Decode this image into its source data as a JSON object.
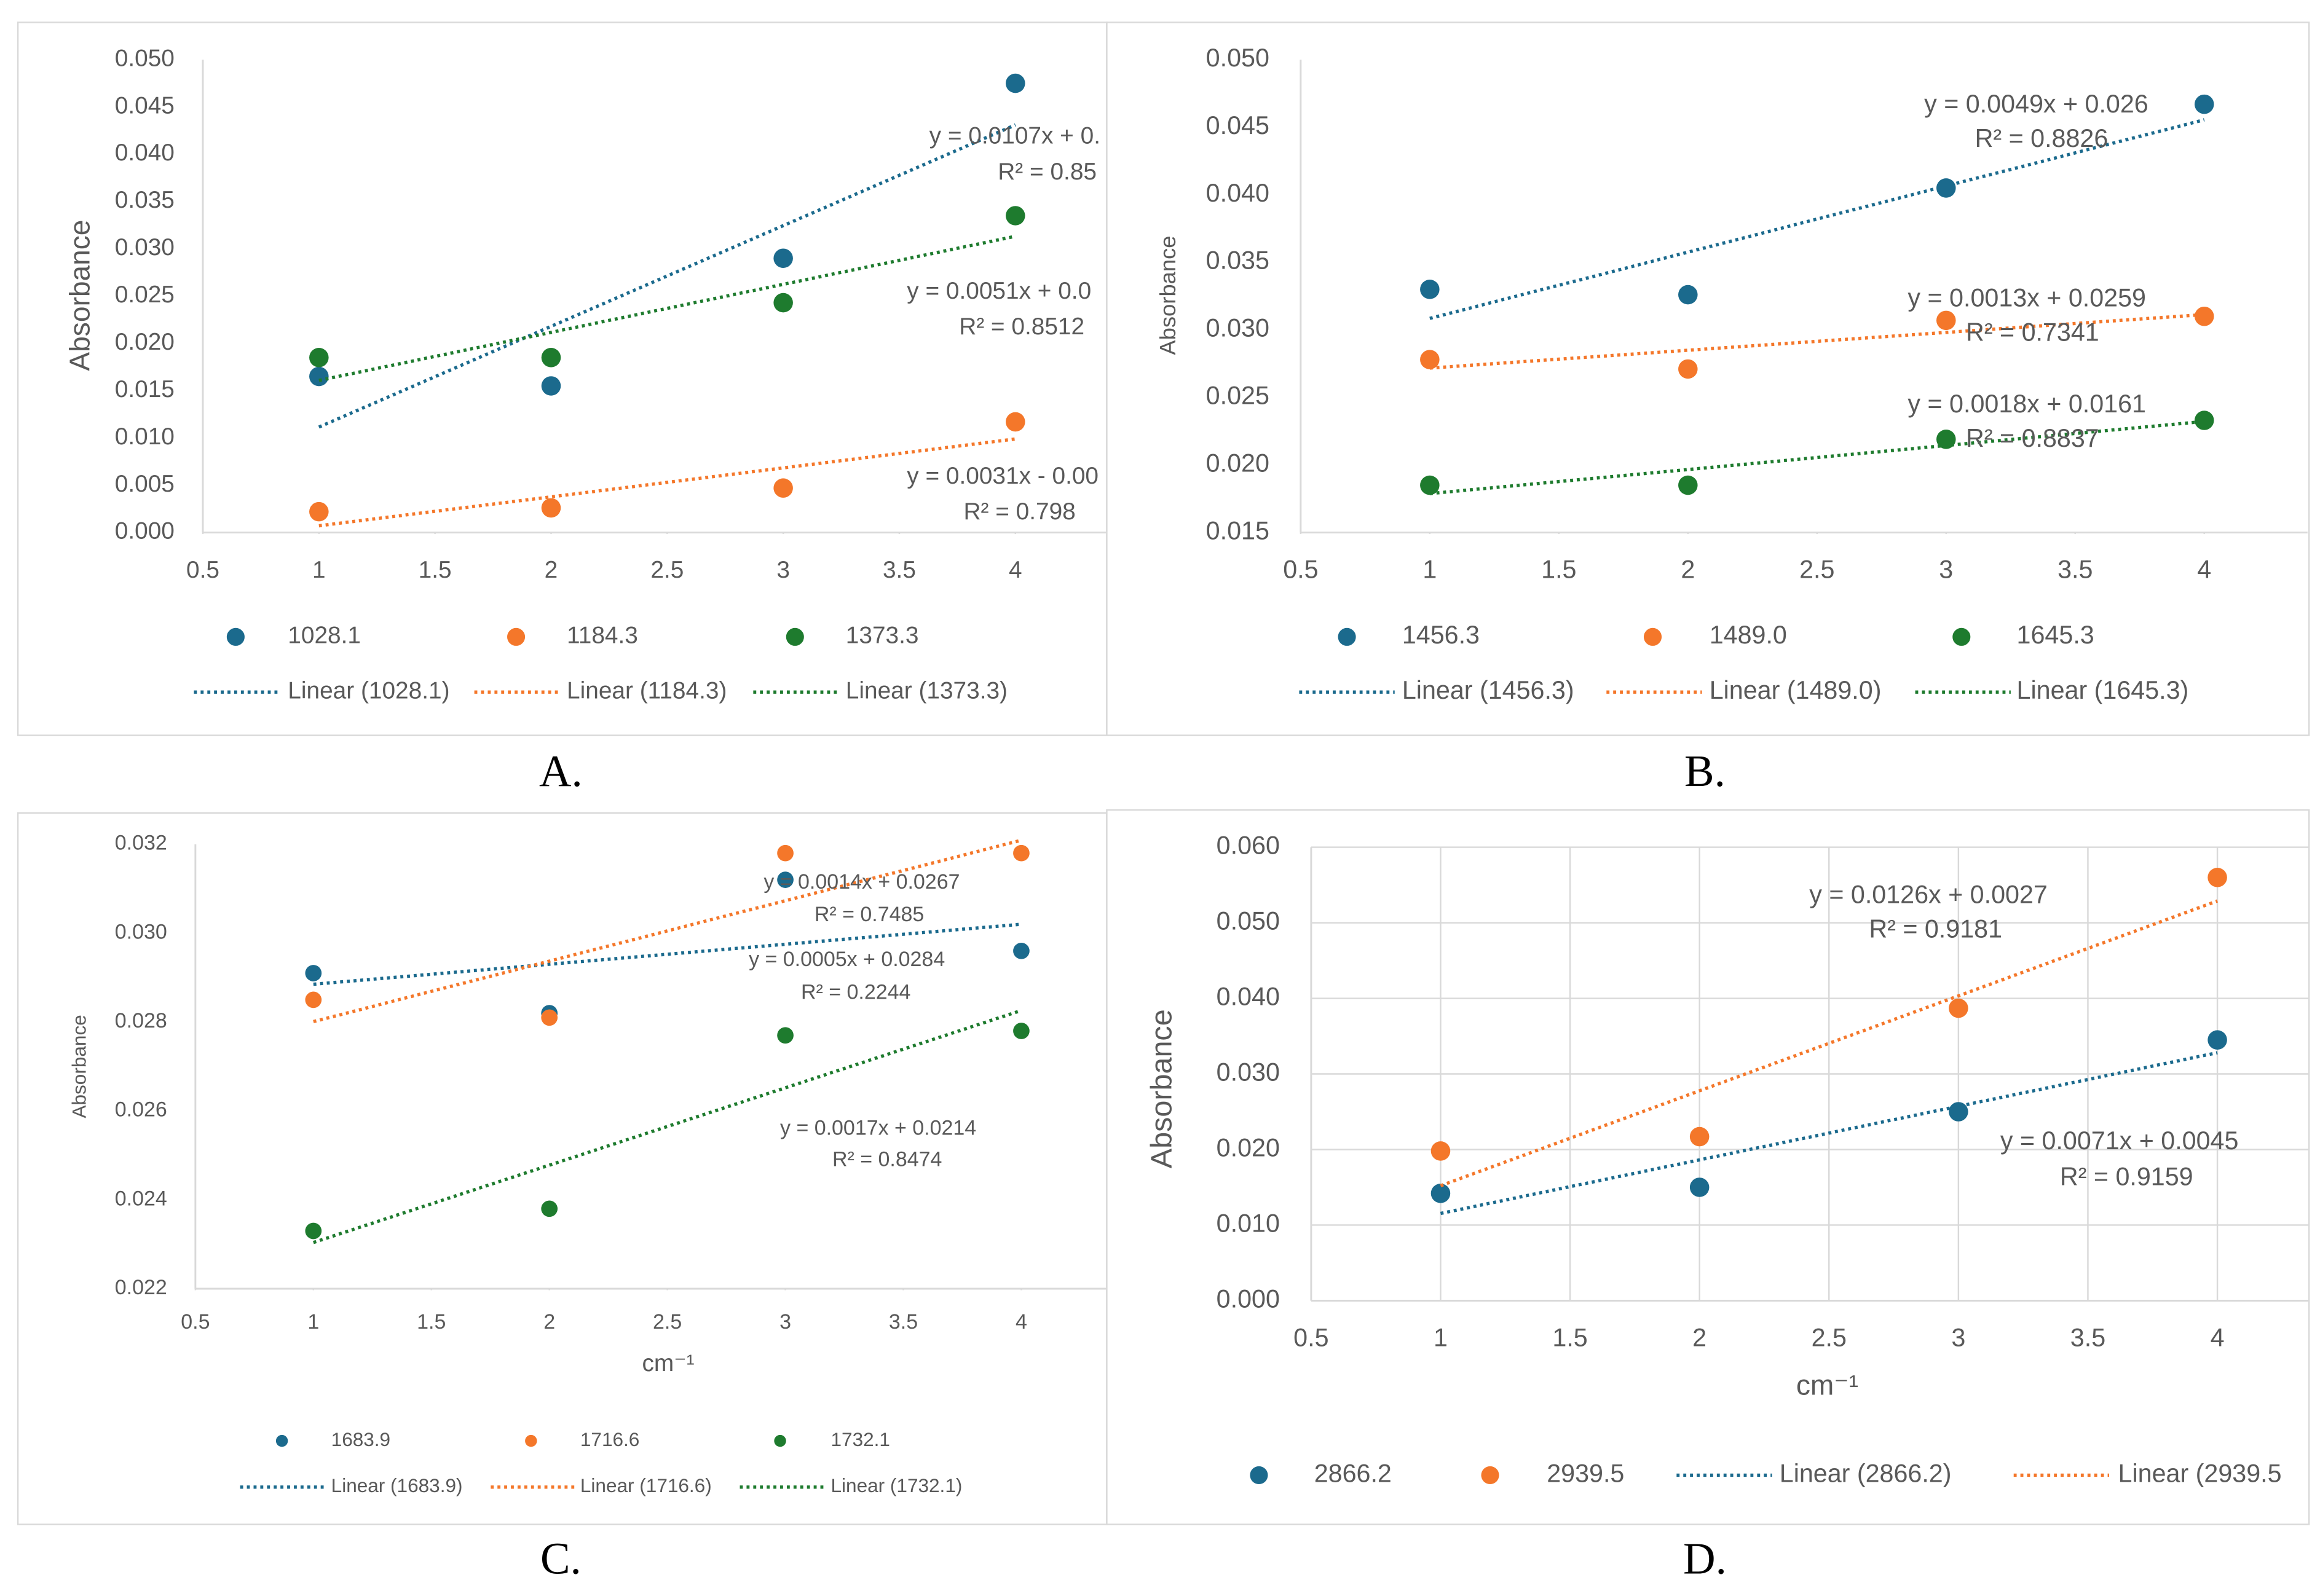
{
  "chart_data": [
    {
      "type": "scatter",
      "label": "A.",
      "ylabel": "Absorbance",
      "x": [
        1,
        2,
        3,
        4
      ],
      "xlim": [
        0.5,
        4.4
      ],
      "xticks": [
        0.5,
        1,
        1.5,
        2,
        2.5,
        3,
        3.5,
        4
      ],
      "ylim": [
        0,
        0.05
      ],
      "yticks": [
        {
          "value": 0,
          "label": "0.000"
        },
        {
          "value": 0.005,
          "label": "0.005"
        },
        {
          "value": 0.01,
          "label": "0.010"
        },
        {
          "value": 0.015,
          "label": "0.015"
        },
        {
          "value": 0.02,
          "label": "0.020"
        },
        {
          "value": 0.025,
          "label": "0.025"
        },
        {
          "value": 0.03,
          "label": "0.030"
        },
        {
          "value": 0.035,
          "label": "0.035"
        },
        {
          "value": 0.04,
          "label": "0.040"
        },
        {
          "value": 0.045,
          "label": "0.045"
        },
        {
          "value": 0.05,
          "label": "0.050"
        }
      ],
      "grid": false,
      "series": [
        {
          "name": "1028.1",
          "trend_name": "Linear (1028.1)",
          "color": "#1b6a8d",
          "values": [
            0.0165,
            0.0155,
            0.029,
            0.0475
          ],
          "equation": "y = 0.0107x + 0.",
          "r2": "R² = 0.85"
        },
        {
          "name": "1184.3",
          "trend_name": "Linear (1184.3)",
          "color": "#f4772a",
          "values": [
            0.0022,
            0.0026,
            0.0047,
            0.0117
          ],
          "equation": "y = 0.0031x - 0.00",
          "r2": "R² = 0.798"
        },
        {
          "name": "1373.3",
          "trend_name": "Linear (1373.3)",
          "color": "#1e7b2e",
          "values": [
            0.0185,
            0.0185,
            0.0243,
            0.0335
          ],
          "equation": "y = 0.0051x + 0.0",
          "r2": "R² = 0.8512"
        }
      ]
    },
    {
      "type": "scatter",
      "label": "B.",
      "ylabel": "Absorbance",
      "x": [
        1,
        2,
        3,
        4
      ],
      "xlim": [
        0.5,
        4.4
      ],
      "xticks": [
        0.5,
        1,
        1.5,
        2,
        2.5,
        3,
        3.5,
        4
      ],
      "ylim": [
        0.015,
        0.05
      ],
      "yticks": [
        {
          "value": 0.015,
          "label": "0.015"
        },
        {
          "value": 0.02,
          "label": "0.020"
        },
        {
          "value": 0.025,
          "label": "0.025"
        },
        {
          "value": 0.03,
          "label": "0.030"
        },
        {
          "value": 0.035,
          "label": "0.035"
        },
        {
          "value": 0.04,
          "label": "0.040"
        },
        {
          "value": 0.045,
          "label": "0.045"
        },
        {
          "value": 0.05,
          "label": "0.050"
        }
      ],
      "grid": false,
      "series": [
        {
          "name": "1456.3",
          "trend_name": "Linear (1456.3)",
          "color": "#1b6a8d",
          "values": [
            0.033,
            0.0326,
            0.0405,
            0.0467
          ],
          "equation": "y = 0.0049x + 0.026",
          "r2": "R² = 0.8826"
        },
        {
          "name": "1489.0",
          "trend_name": "Linear (1489.0)",
          "color": "#f4772a",
          "values": [
            0.0278,
            0.0271,
            0.0307,
            0.031
          ],
          "equation": "y = 0.0013x + 0.0259",
          "r2": "R² = 0.7341"
        },
        {
          "name": "1645.3",
          "trend_name": "Linear (1645.3)",
          "color": "#1e7b2e",
          "values": [
            0.0185,
            0.0185,
            0.0219,
            0.0233
          ],
          "equation": "y = 0.0018x + 0.0161",
          "r2": "R² = 0.8837"
        }
      ]
    },
    {
      "type": "scatter",
      "label": "C.",
      "ylabel": "Absorbance",
      "xlabel": "cm⁻¹",
      "x": [
        1,
        2,
        3,
        4
      ],
      "xlim": [
        0.5,
        4.4
      ],
      "xticks": [
        0.5,
        1,
        1.5,
        2,
        2.5,
        3,
        3.5,
        4
      ],
      "ylim": [
        0.022,
        0.032
      ],
      "yticks": [
        {
          "value": 0.022,
          "label": "0.022"
        },
        {
          "value": 0.024,
          "label": "0.024"
        },
        {
          "value": 0.026,
          "label": "0.026"
        },
        {
          "value": 0.028,
          "label": "0.028"
        },
        {
          "value": 0.03,
          "label": "0.030"
        },
        {
          "value": 0.032,
          "label": "0.032"
        }
      ],
      "grid": false,
      "series": [
        {
          "name": "1683.9",
          "trend_name": "Linear (1683.9)",
          "color": "#1b6a8d",
          "values": [
            0.0291,
            0.0282,
            0.0312,
            0.0296
          ],
          "equation": "y = 0.0005x + 0.0284",
          "r2": "R² = 0.2244"
        },
        {
          "name": "1716.6",
          "trend_name": "Linear (1716.6)",
          "color": "#f4772a",
          "values": [
            0.0285,
            0.0281,
            0.0318,
            0.0318
          ],
          "equation": "y = 0.0014x + 0.0267",
          "r2": "R² = 0.7485"
        },
        {
          "name": "1732.1",
          "trend_name": "Linear (1732.1)",
          "color": "#1e7b2e",
          "values": [
            0.0233,
            0.0238,
            0.0277,
            0.0278
          ],
          "equation": "y = 0.0017x + 0.0214",
          "r2": "R² = 0.8474"
        }
      ]
    },
    {
      "type": "scatter",
      "label": "D.",
      "ylabel": "Absorbance",
      "xlabel": "cm⁻¹",
      "x": [
        1,
        2,
        3,
        4
      ],
      "xlim": [
        0.5,
        4.4
      ],
      "xticks": [
        0.5,
        1,
        1.5,
        2,
        2.5,
        3,
        3.5,
        4
      ],
      "ylim": [
        0,
        0.06
      ],
      "yticks": [
        {
          "value": 0,
          "label": "0.000"
        },
        {
          "value": 0.01,
          "label": "0.010"
        },
        {
          "value": 0.02,
          "label": "0.020"
        },
        {
          "value": 0.03,
          "label": "0.030"
        },
        {
          "value": 0.04,
          "label": "0.040"
        },
        {
          "value": 0.05,
          "label": "0.050"
        },
        {
          "value": 0.06,
          "label": "0.060"
        }
      ],
      "grid": true,
      "series": [
        {
          "name": "2866.2",
          "trend_name": "Linear (2866.2)",
          "color": "#1b6a8d",
          "values": [
            0.0142,
            0.015,
            0.025,
            0.0345
          ],
          "equation": "y = 0.0071x + 0.0045",
          "r2": "R² = 0.9159"
        },
        {
          "name": "2939.5",
          "trend_name": "Linear (2939.5",
          "color": "#f4772a",
          "values": [
            0.0198,
            0.0217,
            0.0387,
            0.056
          ],
          "equation": "y = 0.0126x + 0.0027",
          "r2": "R² = 0.9181"
        }
      ]
    }
  ]
}
